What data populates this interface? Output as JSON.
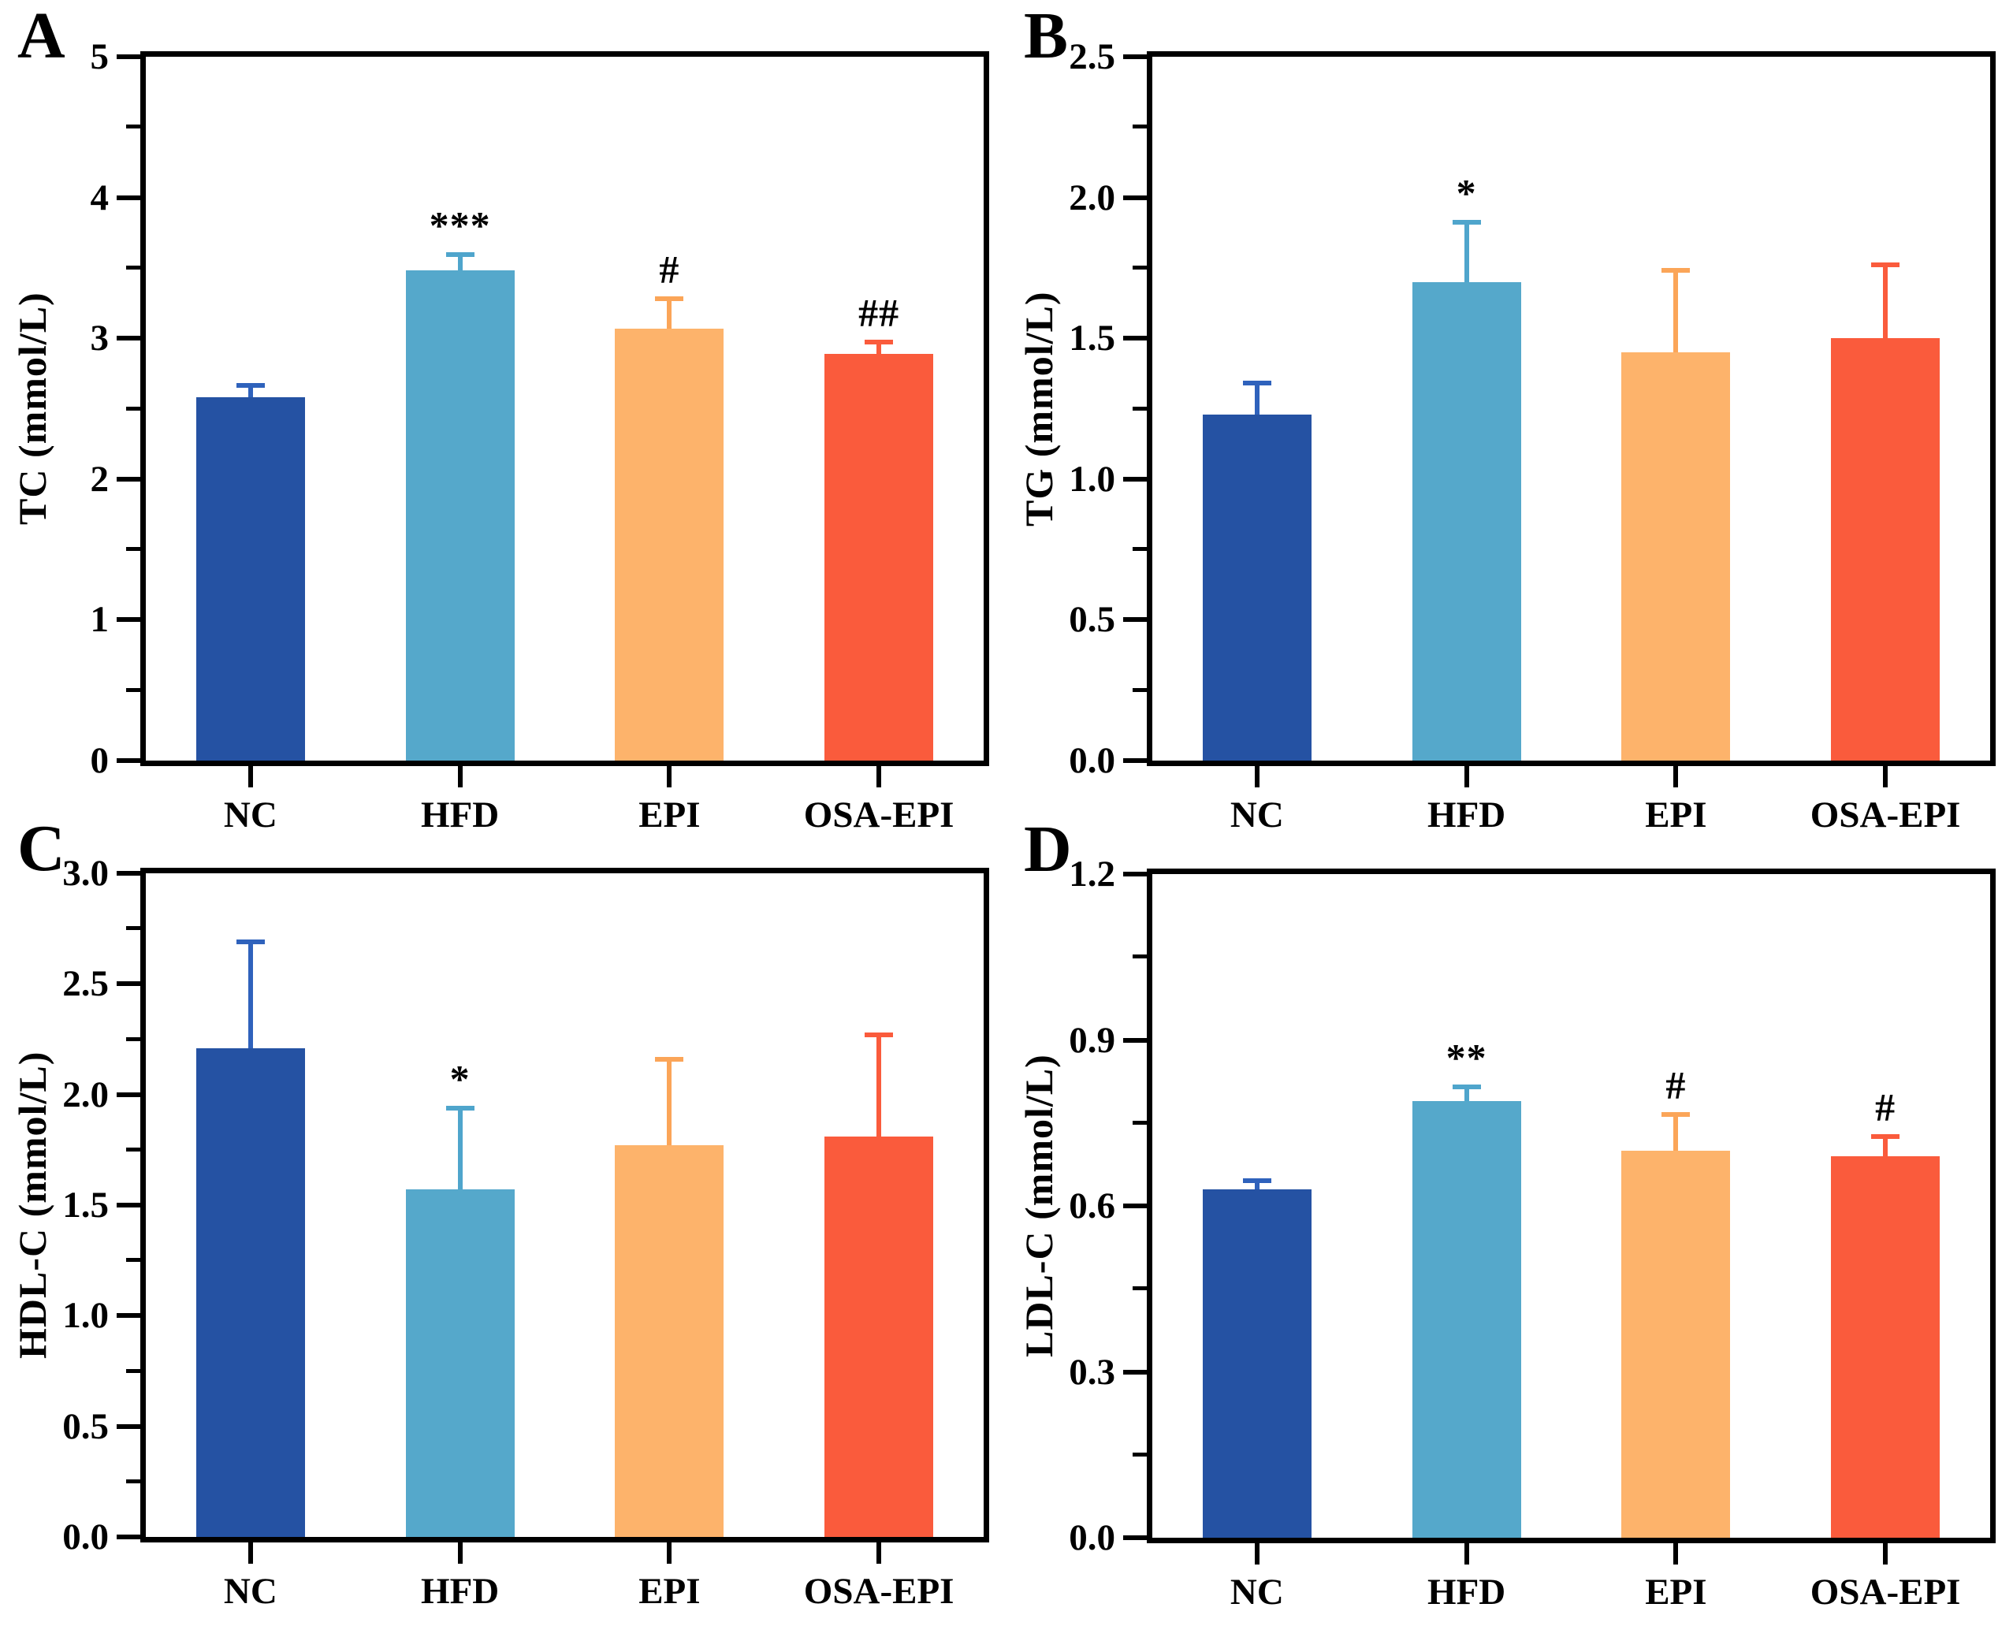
{
  "figure": {
    "background": "#ffffff"
  },
  "colors": {
    "bars": [
      "#2552A3",
      "#55A8CB",
      "#FDB36B",
      "#FA5B3C"
    ],
    "error_bars": [
      "#2F62BC",
      "#4FA5CC",
      "#FBA558",
      "#FA5B3C"
    ],
    "axis": "#000000",
    "text": "#000000"
  },
  "chart_data": [
    {
      "panel": "A",
      "type": "bar",
      "title": "",
      "xlabel": "",
      "ylabel": "TC (mmol/L)",
      "ymin": 0,
      "ymax": 5,
      "ymajor": 1,
      "yminor": 0.5,
      "ytick_labels": [
        "0",
        "1",
        "2",
        "3",
        "4",
        "5"
      ],
      "categories": [
        "NC",
        "HFD",
        "EPI",
        "OSA-EPI"
      ],
      "values": [
        2.58,
        3.48,
        3.07,
        2.89
      ],
      "errors_to": [
        2.68,
        3.61,
        3.3,
        2.99
      ],
      "annotations": [
        "",
        "***",
        "#",
        "##"
      ],
      "grid": false,
      "legend": false
    },
    {
      "panel": "B",
      "type": "bar",
      "title": "",
      "xlabel": "",
      "ylabel": "TG (mmol/L)",
      "ymin": 0,
      "ymax": 2.5,
      "ymajor": 0.5,
      "yminor": 0.25,
      "ytick_labels": [
        "0.0",
        "0.5",
        "1.0",
        "1.5",
        "2.0",
        "2.5"
      ],
      "categories": [
        "NC",
        "HFD",
        "EPI",
        "OSA-EPI"
      ],
      "values": [
        1.23,
        1.7,
        1.45,
        1.5
      ],
      "errors_to": [
        1.35,
        1.92,
        1.75,
        1.77
      ],
      "annotations": [
        "",
        "*",
        "",
        ""
      ],
      "grid": false,
      "legend": false
    },
    {
      "panel": "C",
      "type": "bar",
      "title": "",
      "xlabel": "",
      "ylabel": "HDL-C (mmol/L)",
      "ymin": 0,
      "ymax": 3.0,
      "ymajor": 0.5,
      "yminor": 0.25,
      "ytick_labels": [
        "0.0",
        "0.5",
        "1.0",
        "1.5",
        "2.0",
        "2.5",
        "3.0"
      ],
      "categories": [
        "NC",
        "HFD",
        "EPI",
        "OSA-EPI"
      ],
      "values": [
        2.21,
        1.57,
        1.77,
        1.81
      ],
      "errors_to": [
        2.7,
        1.95,
        2.17,
        2.28
      ],
      "annotations": [
        "",
        "*",
        "",
        ""
      ],
      "grid": false,
      "legend": false
    },
    {
      "panel": "D",
      "type": "bar",
      "title": "",
      "xlabel": "",
      "ylabel": "LDL-C (mmol/L)",
      "ymin": 0,
      "ymax": 1.2,
      "ymajor": 0.3,
      "yminor": 0.15,
      "ytick_labels": [
        "0.0",
        "0.3",
        "0.6",
        "0.9",
        "1.2"
      ],
      "categories": [
        "NC",
        "HFD",
        "EPI",
        "OSA-EPI"
      ],
      "values": [
        0.63,
        0.79,
        0.7,
        0.69
      ],
      "errors_to": [
        0.65,
        0.82,
        0.77,
        0.73
      ],
      "annotations": [
        "",
        "**",
        "#",
        "#"
      ],
      "grid": false,
      "legend": false
    }
  ]
}
